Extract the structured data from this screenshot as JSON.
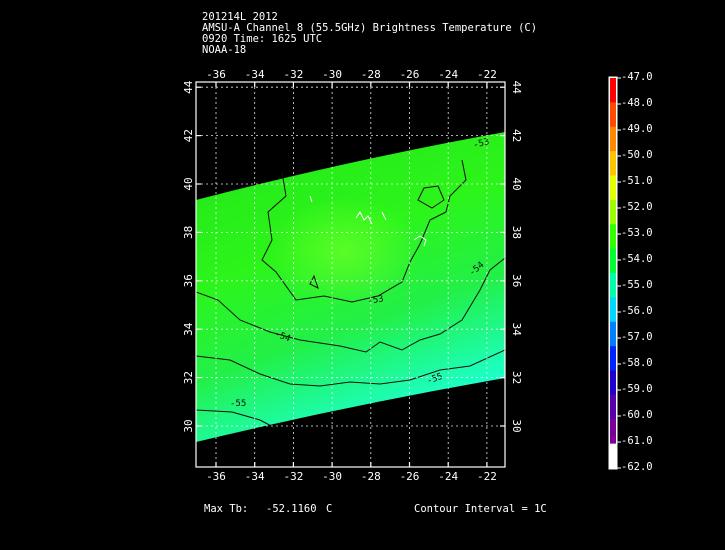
{
  "header": {
    "line1": "201214L 2012",
    "line2": "AMSU-A Channel 8 (55.5GHz) Brightness Temperature (C)",
    "line3": "0920 Time: 1625 UTC",
    "line4": "NOAA-18"
  },
  "map": {
    "lon_ticks": [
      "-36",
      "-34",
      "-32",
      "-30",
      "-28",
      "-26",
      "-24",
      "-22"
    ],
    "lat_ticks": [
      "30",
      "32",
      "34",
      "36",
      "38",
      "40",
      "42",
      "44"
    ],
    "contour_labels": [
      "-53",
      "-53",
      "-54",
      "-54",
      "-55",
      "-55"
    ],
    "colors": {
      "land_edge": "#1a9f1a",
      "warm": "#2fff1a",
      "cool": "#19ffc8"
    }
  },
  "colorbar": {
    "labels": [
      "-47.0",
      "-48.0",
      "-49.0",
      "-50.0",
      "-51.0",
      "-52.0",
      "-53.0",
      "-54.0",
      "-55.0",
      "-56.0",
      "-57.0",
      "-58.0",
      "-59.0",
      "-60.0",
      "-61.0",
      "-62.0"
    ],
    "colors": [
      "#ff0000",
      "#ff4a00",
      "#ff8800",
      "#ffc400",
      "#e2ff00",
      "#9aff00",
      "#33ff00",
      "#00ff33",
      "#00ffaa",
      "#00d8ff",
      "#0080ff",
      "#0022ff",
      "#2200cc",
      "#5500aa",
      "#7a0099",
      "#ffffff"
    ]
  },
  "footer": {
    "max_label": "Max Tb:",
    "max_value": "-52.1160",
    "max_unit": "C",
    "contour": "Contour Interval = 1C"
  }
}
